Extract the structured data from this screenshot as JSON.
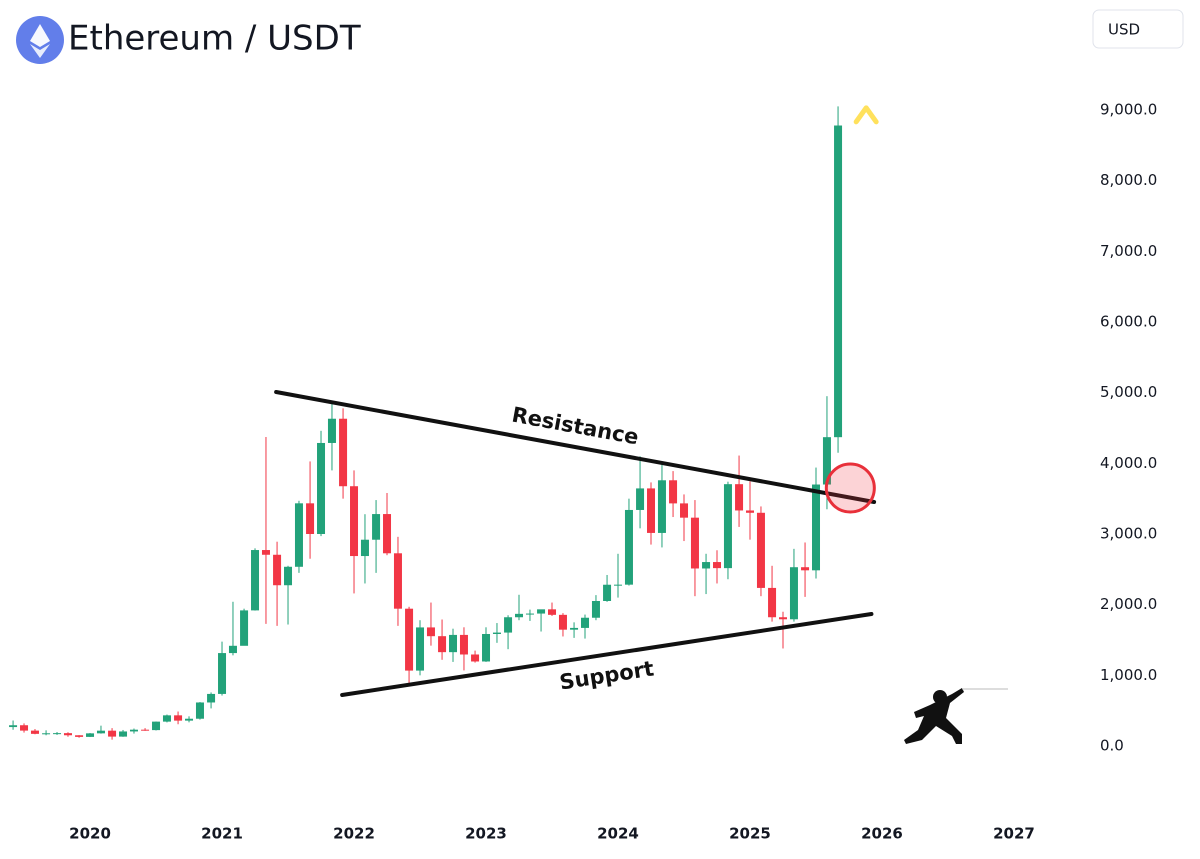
{
  "chart_data": {
    "type": "candlestick",
    "title": "Ethereum / USDT",
    "currency": "USD",
    "up_color": "#22a27a",
    "down_color": "#f23645",
    "x": [
      2019.417,
      2019.5,
      2019.583,
      2019.667,
      2019.75,
      2019.833,
      2019.917,
      2020.0,
      2020.083,
      2020.167,
      2020.25,
      2020.333,
      2020.417,
      2020.5,
      2020.583,
      2020.667,
      2020.75,
      2020.833,
      2020.917,
      2021.0,
      2021.083,
      2021.167,
      2021.25,
      2021.333,
      2021.417,
      2021.5,
      2021.583,
      2021.667,
      2021.75,
      2021.833,
      2021.917,
      2022.0,
      2022.083,
      2022.167,
      2022.25,
      2022.333,
      2022.417,
      2022.5,
      2022.583,
      2022.667,
      2022.75,
      2022.833,
      2022.917,
      2023.0,
      2023.083,
      2023.167,
      2023.25,
      2023.333,
      2023.417,
      2023.5,
      2023.583,
      2023.667,
      2023.75,
      2023.833,
      2023.917,
      2024.0,
      2024.083,
      2024.167,
      2024.25,
      2024.333,
      2024.417,
      2024.5,
      2024.583,
      2024.667,
      2024.75,
      2024.833,
      2024.917,
      2025.0,
      2025.083,
      2025.167,
      2025.25,
      2025.333,
      2025.417,
      2025.5,
      2025.583,
      2025.667
    ],
    "open": [
      268,
      294,
      218,
      172,
      180,
      182,
      152,
      129,
      179,
      217,
      133,
      206,
      231,
      225,
      345,
      434,
      359,
      386,
      616,
      737,
      1315,
      1418,
      1919,
      2773,
      2706,
      2275,
      2536,
      3434,
      3000,
      4288,
      4631,
      3676,
      2688,
      2919,
      3282,
      2727,
      1943,
      1067,
      1678,
      1554,
      1328,
      1572,
      1295,
      1196,
      1585,
      1605,
      1822,
      1870,
      1874,
      1934,
      1856,
      1646,
      1671,
      1815,
      2052,
      2282,
      2283,
      3340,
      3645,
      3015,
      3760,
      3433,
      3231,
      2512,
      2603,
      2517,
      3705,
      3333,
      3300,
      2237,
      1822,
      1793,
      2530,
      2486,
      3700,
      4370
    ],
    "high": [
      361,
      320,
      240,
      222,
      198,
      195,
      153,
      184,
      288,
      253,
      227,
      247,
      253,
      347,
      445,
      488,
      420,
      622,
      758,
      1477,
      2041,
      1943,
      2797,
      4372,
      2891,
      2550,
      3470,
      4027,
      4460,
      4868,
      4778,
      3900,
      3280,
      3480,
      3580,
      2960,
      1970,
      1780,
      2030,
      1790,
      1660,
      1680,
      1350,
      1680,
      1740,
      1850,
      2140,
      1930,
      1930,
      2030,
      1880,
      1750,
      1860,
      2135,
      2420,
      2720,
      3500,
      4100,
      3730,
      3980,
      3890,
      3560,
      3480,
      2720,
      2770,
      3740,
      4110,
      3745,
      3390,
      2550,
      1900,
      2790,
      2880,
      3940,
      4950,
      9050
    ],
    "low": [
      230,
      190,
      166,
      152,
      157,
      131,
      117,
      127,
      175,
      90,
      130,
      176,
      215,
      220,
      334,
      308,
      335,
      374,
      532,
      714,
      1283,
      1439,
      1916,
      1728,
      1700,
      1719,
      2450,
      2650,
      2970,
      3900,
      3500,
      2159,
      2300,
      2450,
      2700,
      1700,
      880,
      1000,
      1420,
      1220,
      1190,
      1070,
      1180,
      1190,
      1460,
      1370,
      1780,
      1770,
      1620,
      1840,
      1550,
      1530,
      1520,
      1780,
      2040,
      2100,
      2270,
      3080,
      2850,
      2810,
      3240,
      2900,
      2120,
      2150,
      2300,
      2360,
      3100,
      2920,
      2120,
      1760,
      1380,
      1760,
      2110,
      2370,
      3350,
      4150
    ],
    "close": [
      294,
      218,
      172,
      180,
      182,
      152,
      129,
      179,
      217,
      133,
      206,
      231,
      225,
      345,
      434,
      359,
      386,
      616,
      737,
      1315,
      1418,
      1919,
      2773,
      2706,
      2275,
      2536,
      3434,
      3000,
      4288,
      4631,
      3676,
      2688,
      2919,
      3282,
      2727,
      1943,
      1067,
      1678,
      1554,
      1328,
      1572,
      1295,
      1196,
      1585,
      1605,
      1822,
      1870,
      1874,
      1934,
      1856,
      1646,
      1671,
      1815,
      2052,
      2282,
      2283,
      3340,
      3645,
      3015,
      3760,
      3433,
      3231,
      2512,
      2603,
      2517,
      3705,
      3333,
      3300,
      2237,
      1822,
      1793,
      2530,
      2486,
      3700,
      4370,
      8780
    ],
    "xlim": [
      2019.318,
      2027.5
    ],
    "xticks": [
      2020,
      2021,
      2022,
      2023,
      2024,
      2025,
      2026,
      2027
    ],
    "ylim": [
      -764,
      9707
    ],
    "yticks": [
      {
        "value": 0,
        "label": "0.0"
      },
      {
        "value": 1000,
        "label": "1,000.0"
      },
      {
        "value": 2000,
        "label": "2,000.0"
      },
      {
        "value": 3000,
        "label": "3,000.0"
      },
      {
        "value": 4000,
        "label": "4,000.0"
      },
      {
        "value": 5000,
        "label": "5,000.0"
      },
      {
        "value": 6000,
        "label": "6,000.0"
      },
      {
        "value": 7000,
        "label": "7,000.0"
      },
      {
        "value": 8000,
        "label": "8,000.0"
      },
      {
        "value": 9000,
        "label": "9,000.0"
      }
    ],
    "trendlines": [
      {
        "text": "Resistance",
        "x": [
          2021.41,
          2025.94
        ],
        "y": [
          5009,
          3453
        ]
      },
      {
        "text": "Support",
        "x": [
          2021.91,
          2025.92
        ],
        "y": [
          722,
          1868
        ]
      }
    ],
    "highlight": {
      "x": 2025.76,
      "y": 3650
    },
    "arrow": {
      "x": 2025.88,
      "y": [
        4190,
        9030
      ]
    }
  }
}
